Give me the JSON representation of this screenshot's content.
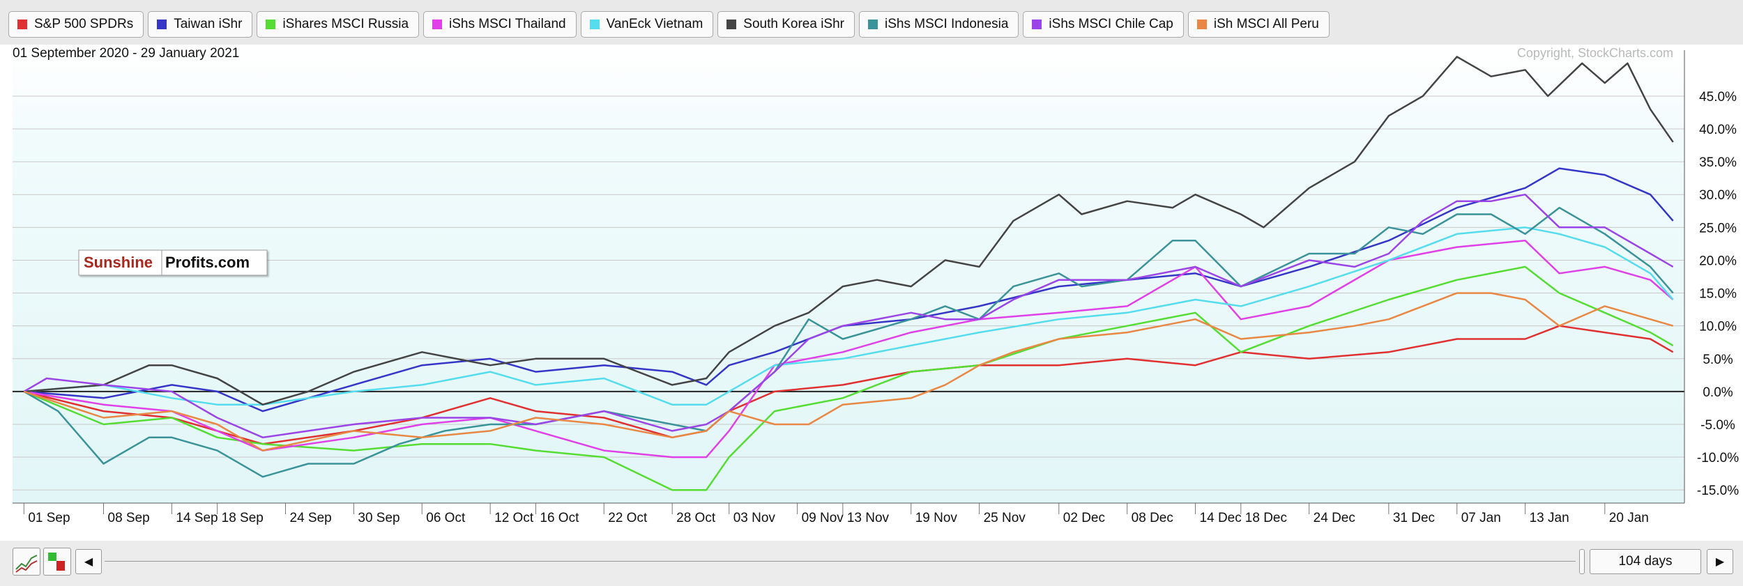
{
  "chart_data": {
    "type": "line",
    "subtitle": "01 September 2020 - 29 January 2021",
    "watermark": "Copyright, StockCharts.com",
    "y_axis_side": "right",
    "ylim": [
      -17,
      52
    ],
    "y_ticks": [
      45,
      40,
      35,
      30,
      25,
      20,
      15,
      10,
      5,
      0,
      -5,
      -10,
      -15
    ],
    "y_tick_labels": [
      "45.0%",
      "40.0%",
      "35.0%",
      "30.0%",
      "25.0%",
      "20.0%",
      "15.0%",
      "10.0%",
      "5.0%",
      "0.0%",
      "-5.0%",
      "-10.0%",
      "-15.0%"
    ],
    "x_ticks": [
      1,
      8,
      14,
      18,
      24,
      30,
      36,
      42,
      46,
      52,
      58,
      63,
      69,
      73,
      79,
      85,
      92,
      98,
      104,
      108,
      114,
      121,
      127,
      133,
      140
    ],
    "x_tick_labels": [
      "01 Sep",
      "08 Sep",
      "14 Sep",
      "18 Sep",
      "24 Sep",
      "30 Sep",
      "06 Oct",
      "12 Oct",
      "16 Oct",
      "22 Oct",
      "28 Oct",
      "03 Nov",
      "09 Nov",
      "13 Nov",
      "19 Nov",
      "25 Nov",
      "02 Dec",
      "08 Dec",
      "14 Dec",
      "18 Dec",
      "24 Dec",
      "31 Dec",
      "07 Jan",
      "13 Jan",
      "20 Jan"
    ],
    "grid": true,
    "series": [
      {
        "name": "S&P 500 SPDRs",
        "color": "#e03030",
        "points": [
          [
            1,
            0
          ],
          [
            8,
            -3
          ],
          [
            14,
            -4
          ],
          [
            18,
            -6
          ],
          [
            22,
            -8
          ],
          [
            30,
            -6
          ],
          [
            36,
            -4
          ],
          [
            42,
            -1
          ],
          [
            46,
            -3
          ],
          [
            52,
            -4
          ],
          [
            58,
            -7
          ],
          [
            61,
            -6
          ],
          [
            63,
            -3
          ],
          [
            67,
            0
          ],
          [
            73,
            1
          ],
          [
            79,
            3
          ],
          [
            85,
            4
          ],
          [
            92,
            4
          ],
          [
            98,
            5
          ],
          [
            104,
            4
          ],
          [
            108,
            6
          ],
          [
            114,
            5
          ],
          [
            121,
            6
          ],
          [
            127,
            8
          ],
          [
            133,
            8
          ],
          [
            136,
            10
          ],
          [
            140,
            9
          ],
          [
            144,
            8
          ],
          [
            146,
            6
          ]
        ]
      },
      {
        "name": "Taiwan iShr",
        "color": "#3535c8",
        "points": [
          [
            1,
            0
          ],
          [
            8,
            -1
          ],
          [
            14,
            1
          ],
          [
            18,
            0
          ],
          [
            22,
            -3
          ],
          [
            30,
            1
          ],
          [
            36,
            4
          ],
          [
            42,
            5
          ],
          [
            46,
            3
          ],
          [
            52,
            4
          ],
          [
            58,
            3
          ],
          [
            61,
            1
          ],
          [
            63,
            4
          ],
          [
            67,
            6
          ],
          [
            73,
            10
          ],
          [
            79,
            11
          ],
          [
            85,
            13
          ],
          [
            92,
            16
          ],
          [
            98,
            17
          ],
          [
            104,
            18
          ],
          [
            108,
            16
          ],
          [
            114,
            19
          ],
          [
            121,
            23
          ],
          [
            127,
            28
          ],
          [
            133,
            31
          ],
          [
            136,
            34
          ],
          [
            140,
            33
          ],
          [
            144,
            30
          ],
          [
            146,
            26
          ]
        ]
      },
      {
        "name": "iShares MSCI Russia",
        "color": "#55dd33",
        "points": [
          [
            1,
            0
          ],
          [
            8,
            -5
          ],
          [
            14,
            -4
          ],
          [
            18,
            -7
          ],
          [
            22,
            -8
          ],
          [
            30,
            -9
          ],
          [
            36,
            -8
          ],
          [
            42,
            -8
          ],
          [
            46,
            -9
          ],
          [
            52,
            -10
          ],
          [
            58,
            -15
          ],
          [
            61,
            -15
          ],
          [
            63,
            -10
          ],
          [
            67,
            -3
          ],
          [
            73,
            -1
          ],
          [
            79,
            3
          ],
          [
            85,
            4
          ],
          [
            92,
            8
          ],
          [
            98,
            10
          ],
          [
            104,
            12
          ],
          [
            108,
            6
          ],
          [
            114,
            10
          ],
          [
            121,
            14
          ],
          [
            127,
            17
          ],
          [
            133,
            19
          ],
          [
            136,
            15
          ],
          [
            140,
            12
          ],
          [
            144,
            9
          ],
          [
            146,
            7
          ]
        ]
      },
      {
        "name": "iShs MSCI Thailand",
        "color": "#e040e8",
        "points": [
          [
            1,
            0
          ],
          [
            8,
            -2
          ],
          [
            14,
            -3
          ],
          [
            18,
            -6
          ],
          [
            22,
            -9
          ],
          [
            30,
            -7
          ],
          [
            36,
            -5
          ],
          [
            42,
            -4
          ],
          [
            46,
            -6
          ],
          [
            52,
            -9
          ],
          [
            58,
            -10
          ],
          [
            61,
            -10
          ],
          [
            63,
            -6
          ],
          [
            67,
            4
          ],
          [
            73,
            6
          ],
          [
            79,
            9
          ],
          [
            85,
            11
          ],
          [
            92,
            12
          ],
          [
            98,
            13
          ],
          [
            104,
            19
          ],
          [
            108,
            11
          ],
          [
            114,
            13
          ],
          [
            121,
            20
          ],
          [
            127,
            22
          ],
          [
            133,
            23
          ],
          [
            136,
            18
          ],
          [
            140,
            19
          ],
          [
            144,
            17
          ],
          [
            146,
            14
          ]
        ]
      },
      {
        "name": "VanEck Vietnam",
        "color": "#55ddee",
        "points": [
          [
            1,
            0
          ],
          [
            8,
            1
          ],
          [
            14,
            -1
          ],
          [
            18,
            -2
          ],
          [
            22,
            -2
          ],
          [
            30,
            0
          ],
          [
            36,
            1
          ],
          [
            42,
            3
          ],
          [
            46,
            1
          ],
          [
            52,
            2
          ],
          [
            58,
            -2
          ],
          [
            61,
            -2
          ],
          [
            63,
            0
          ],
          [
            67,
            4
          ],
          [
            73,
            5
          ],
          [
            79,
            7
          ],
          [
            85,
            9
          ],
          [
            92,
            11
          ],
          [
            98,
            12
          ],
          [
            104,
            14
          ],
          [
            108,
            13
          ],
          [
            114,
            16
          ],
          [
            121,
            20
          ],
          [
            127,
            24
          ],
          [
            133,
            25
          ],
          [
            136,
            24
          ],
          [
            140,
            22
          ],
          [
            144,
            18
          ],
          [
            146,
            14
          ]
        ]
      },
      {
        "name": "South Korea iShr",
        "color": "#444444",
        "points": [
          [
            1,
            0
          ],
          [
            8,
            1
          ],
          [
            12,
            4
          ],
          [
            14,
            4
          ],
          [
            18,
            2
          ],
          [
            22,
            -2
          ],
          [
            26,
            0
          ],
          [
            30,
            3
          ],
          [
            36,
            6
          ],
          [
            42,
            4
          ],
          [
            46,
            5
          ],
          [
            52,
            5
          ],
          [
            58,
            1
          ],
          [
            61,
            2
          ],
          [
            63,
            6
          ],
          [
            67,
            10
          ],
          [
            70,
            12
          ],
          [
            73,
            16
          ],
          [
            76,
            17
          ],
          [
            79,
            16
          ],
          [
            82,
            20
          ],
          [
            85,
            19
          ],
          [
            88,
            26
          ],
          [
            92,
            30
          ],
          [
            94,
            27
          ],
          [
            98,
            29
          ],
          [
            102,
            28
          ],
          [
            104,
            30
          ],
          [
            108,
            27
          ],
          [
            110,
            25
          ],
          [
            114,
            31
          ],
          [
            118,
            35
          ],
          [
            121,
            42
          ],
          [
            124,
            45
          ],
          [
            127,
            51
          ],
          [
            130,
            48
          ],
          [
            133,
            49
          ],
          [
            135,
            45
          ],
          [
            138,
            50
          ],
          [
            140,
            47
          ],
          [
            142,
            50
          ],
          [
            144,
            43
          ],
          [
            146,
            38
          ]
        ]
      },
      {
        "name": "iShs MSCI Indonesia",
        "color": "#3a9399",
        "points": [
          [
            1,
            0
          ],
          [
            4,
            -3
          ],
          [
            8,
            -11
          ],
          [
            12,
            -7
          ],
          [
            14,
            -7
          ],
          [
            18,
            -9
          ],
          [
            22,
            -13
          ],
          [
            26,
            -11
          ],
          [
            30,
            -11
          ],
          [
            34,
            -8
          ],
          [
            38,
            -6
          ],
          [
            42,
            -5
          ],
          [
            46,
            -5
          ],
          [
            52,
            -3
          ],
          [
            58,
            -5
          ],
          [
            61,
            -6
          ],
          [
            63,
            -3
          ],
          [
            67,
            3
          ],
          [
            70,
            11
          ],
          [
            73,
            8
          ],
          [
            79,
            11
          ],
          [
            82,
            13
          ],
          [
            85,
            11
          ],
          [
            88,
            16
          ],
          [
            92,
            18
          ],
          [
            94,
            16
          ],
          [
            98,
            17
          ],
          [
            102,
            23
          ],
          [
            104,
            23
          ],
          [
            108,
            16
          ],
          [
            114,
            21
          ],
          [
            118,
            21
          ],
          [
            121,
            25
          ],
          [
            124,
            24
          ],
          [
            127,
            27
          ],
          [
            130,
            27
          ],
          [
            133,
            24
          ],
          [
            136,
            28
          ],
          [
            140,
            24
          ],
          [
            144,
            19
          ],
          [
            146,
            15
          ]
        ]
      },
      {
        "name": "iShs MSCI Chile Cap",
        "color": "#9b45e6",
        "points": [
          [
            1,
            0
          ],
          [
            3,
            2
          ],
          [
            8,
            1
          ],
          [
            14,
            0
          ],
          [
            18,
            -4
          ],
          [
            22,
            -7
          ],
          [
            26,
            -6
          ],
          [
            30,
            -5
          ],
          [
            36,
            -4
          ],
          [
            42,
            -4
          ],
          [
            46,
            -5
          ],
          [
            52,
            -3
          ],
          [
            58,
            -6
          ],
          [
            61,
            -5
          ],
          [
            63,
            -3
          ],
          [
            67,
            3
          ],
          [
            70,
            8
          ],
          [
            73,
            10
          ],
          [
            79,
            12
          ],
          [
            82,
            11
          ],
          [
            85,
            11
          ],
          [
            88,
            14
          ],
          [
            92,
            17
          ],
          [
            98,
            17
          ],
          [
            104,
            19
          ],
          [
            108,
            16
          ],
          [
            114,
            20
          ],
          [
            118,
            19
          ],
          [
            121,
            21
          ],
          [
            124,
            26
          ],
          [
            127,
            29
          ],
          [
            130,
            29
          ],
          [
            133,
            30
          ],
          [
            136,
            25
          ],
          [
            140,
            25
          ],
          [
            144,
            21
          ],
          [
            146,
            19
          ]
        ]
      },
      {
        "name": "iSh MSCI All Peru",
        "color": "#e88844",
        "points": [
          [
            1,
            0
          ],
          [
            8,
            -4
          ],
          [
            14,
            -3
          ],
          [
            18,
            -5
          ],
          [
            22,
            -9
          ],
          [
            30,
            -6
          ],
          [
            36,
            -7
          ],
          [
            42,
            -6
          ],
          [
            46,
            -4
          ],
          [
            52,
            -5
          ],
          [
            58,
            -7
          ],
          [
            61,
            -6
          ],
          [
            63,
            -3
          ],
          [
            67,
            -5
          ],
          [
            70,
            -5
          ],
          [
            73,
            -2
          ],
          [
            79,
            -1
          ],
          [
            82,
            1
          ],
          [
            85,
            4
          ],
          [
            88,
            6
          ],
          [
            92,
            8
          ],
          [
            98,
            9
          ],
          [
            104,
            11
          ],
          [
            108,
            8
          ],
          [
            114,
            9
          ],
          [
            118,
            10
          ],
          [
            121,
            11
          ],
          [
            124,
            13
          ],
          [
            127,
            15
          ],
          [
            130,
            15
          ],
          [
            133,
            14
          ],
          [
            136,
            10
          ],
          [
            140,
            13
          ],
          [
            144,
            11
          ],
          [
            146,
            10
          ]
        ]
      }
    ]
  },
  "logo": {
    "word1": "Sunshine",
    "word2": "Profits.com"
  },
  "controls": {
    "days_label": "104 days",
    "prev_arrow": "◀",
    "next_arrow": "▶"
  }
}
